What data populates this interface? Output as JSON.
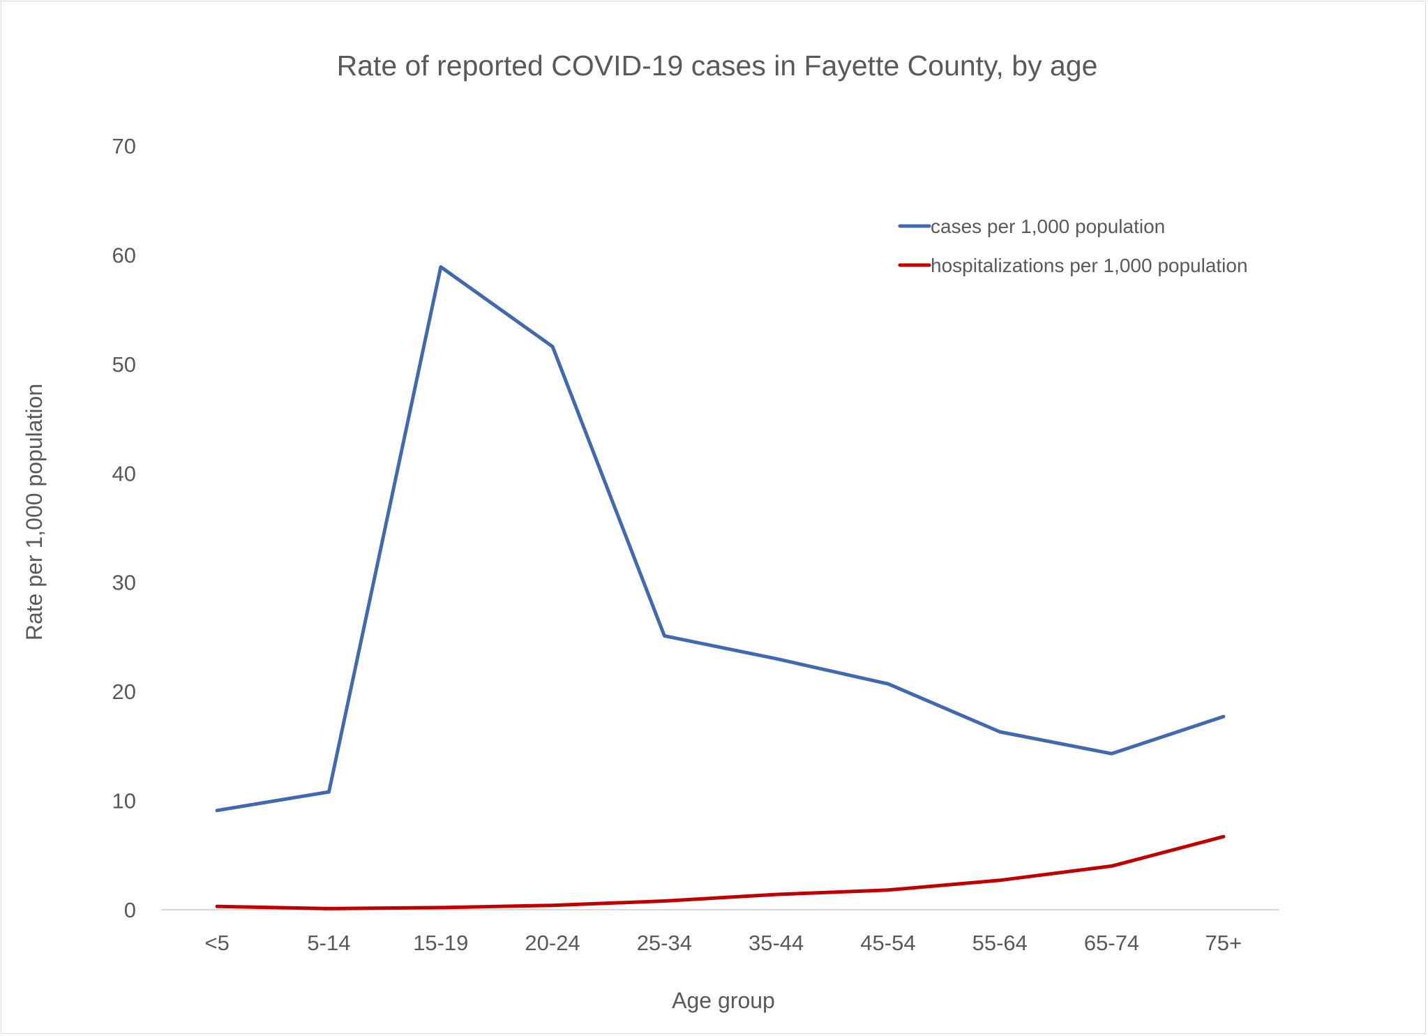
{
  "chart_data": {
    "type": "line",
    "title": "Rate of reported COVID-19 cases in Fayette County, by age",
    "xlabel": "Age group",
    "ylabel": "Rate per 1,000 population",
    "categories": [
      "<5",
      "5-14",
      "15-19",
      "20-24",
      "25-34",
      "35-44",
      "45-54",
      "55-64",
      "65-74",
      "75+"
    ],
    "ylim": [
      0,
      70
    ],
    "yticks": [
      "0",
      "10",
      "20",
      "30",
      "40",
      "50",
      "60",
      "70"
    ],
    "grid": false,
    "legend_position": "top-right",
    "series": [
      {
        "name": "cases per 1,000 population",
        "color": "#4169b0",
        "values": [
          9.1,
          10.8,
          58.9,
          51.6,
          25.1,
          23.0,
          20.7,
          16.3,
          14.3,
          17.7
        ]
      },
      {
        "name": "hospitalizations per 1,000 population",
        "color": "#c00000",
        "values": [
          0.3,
          0.1,
          0.2,
          0.4,
          0.8,
          1.4,
          1.8,
          2.7,
          4.0,
          6.7
        ]
      }
    ]
  },
  "colors": {
    "axis_line": "#d9d9d9",
    "text": "#595959",
    "background": "#ffffff"
  }
}
